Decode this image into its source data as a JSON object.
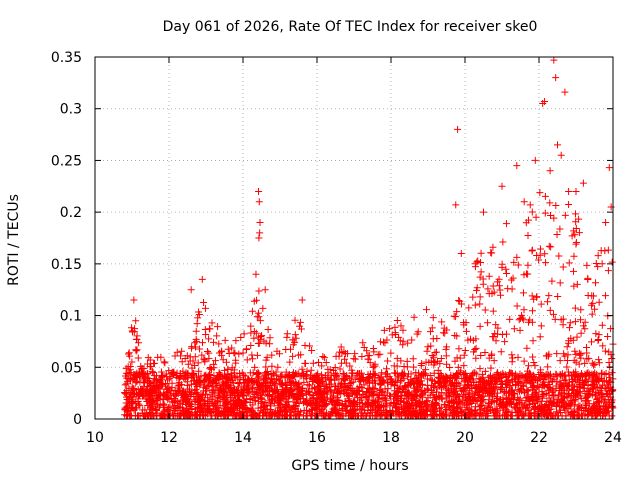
{
  "chart_data": {
    "type": "scatter",
    "title": "Day 061 of 2026, Rate Of TEC Index for receiver ske0",
    "xlabel": "GPS time / hours",
    "ylabel": "ROTI / TECUs",
    "xlim": [
      10,
      24
    ],
    "ylim": [
      0,
      0.35
    ],
    "xticks": [
      10,
      12,
      14,
      16,
      18,
      20,
      22,
      24
    ],
    "yticks": [
      0,
      0.05,
      0.1,
      0.15,
      0.2,
      0.25,
      0.3,
      0.35
    ],
    "grid": true,
    "marker": "+",
    "color": "#ff0000",
    "x_start": 10.8,
    "x_end": 24.0,
    "envelope": [
      [
        10.8,
        0.04
      ],
      [
        11.0,
        0.1
      ],
      [
        11.3,
        0.06
      ],
      [
        12.0,
        0.06
      ],
      [
        12.4,
        0.07
      ],
      [
        12.9,
        0.12
      ],
      [
        13.5,
        0.08
      ],
      [
        14.0,
        0.08
      ],
      [
        14.4,
        0.13
      ],
      [
        14.8,
        0.07
      ],
      [
        15.5,
        0.1
      ],
      [
        16.0,
        0.07
      ],
      [
        17.0,
        0.07
      ],
      [
        17.5,
        0.08
      ],
      [
        18.0,
        0.09
      ],
      [
        18.5,
        0.11
      ],
      [
        19.0,
        0.11
      ],
      [
        19.5,
        0.09
      ],
      [
        20.0,
        0.13
      ],
      [
        20.5,
        0.17
      ],
      [
        21.0,
        0.19
      ],
      [
        21.5,
        0.2
      ],
      [
        22.0,
        0.22
      ],
      [
        22.5,
        0.23
      ],
      [
        23.0,
        0.2
      ],
      [
        23.5,
        0.16
      ],
      [
        24.0,
        0.17
      ]
    ],
    "spikes": [
      [
        11.05,
        0.115
      ],
      [
        11.1,
        0.095
      ],
      [
        12.6,
        0.125
      ],
      [
        12.9,
        0.135
      ],
      [
        14.42,
        0.22
      ],
      [
        14.44,
        0.21
      ],
      [
        14.46,
        0.19
      ],
      [
        14.45,
        0.18
      ],
      [
        14.43,
        0.175
      ],
      [
        14.35,
        0.14
      ],
      [
        14.6,
        0.125
      ],
      [
        15.6,
        0.115
      ],
      [
        19.8,
        0.28
      ],
      [
        19.75,
        0.207
      ],
      [
        19.9,
        0.16
      ],
      [
        21.4,
        0.245
      ],
      [
        21.0,
        0.225
      ],
      [
        21.9,
        0.25
      ],
      [
        22.1,
        0.305
      ],
      [
        22.15,
        0.307
      ],
      [
        22.4,
        0.347
      ],
      [
        22.45,
        0.33
      ],
      [
        22.7,
        0.316
      ],
      [
        22.5,
        0.265
      ],
      [
        22.6,
        0.255
      ],
      [
        23.0,
        0.22
      ],
      [
        23.2,
        0.228
      ],
      [
        23.9,
        0.243
      ],
      [
        23.95,
        0.205
      ],
      [
        23.8,
        0.19
      ],
      [
        20.5,
        0.2
      ],
      [
        21.6,
        0.21
      ],
      [
        22.3,
        0.24
      ],
      [
        22.8,
        0.22
      ]
    ]
  }
}
